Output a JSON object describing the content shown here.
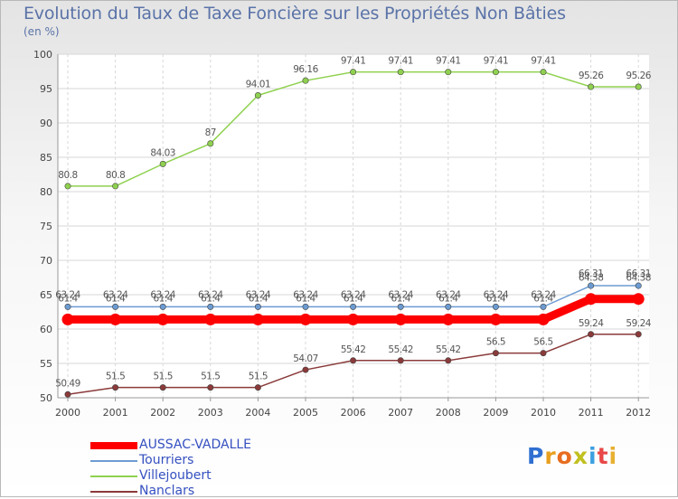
{
  "chart_data": {
    "type": "line",
    "title": "Evolution du Taux de Taxe Foncière sur les Propriétés Non Bâties",
    "ylabel": "(en %)",
    "xlabel": "",
    "ylim": [
      50,
      100
    ],
    "yticks": [
      50,
      55,
      60,
      65,
      70,
      75,
      80,
      85,
      90,
      95,
      100
    ],
    "x": [
      "2000",
      "2001",
      "2002",
      "2003",
      "2004",
      "2005",
      "2006",
      "2007",
      "2008",
      "2009",
      "2010",
      "2011",
      "2012"
    ],
    "series": [
      {
        "name": "AUSSAC-VADALLE",
        "color": "#ff0000",
        "values": [
          61.4,
          61.4,
          61.4,
          61.4,
          61.4,
          61.4,
          61.4,
          61.4,
          61.4,
          61.4,
          61.4,
          64.38,
          64.38
        ],
        "labels": [
          "61.4",
          "61.4",
          "61.4",
          "61.4",
          "61.4",
          "61.4",
          "61.4",
          "61.4",
          "61.4",
          "61.4",
          "61.4",
          "64.38",
          "64.38"
        ]
      },
      {
        "name": "Tourriers",
        "color": "#6c9bd2",
        "values": [
          63.24,
          63.24,
          63.24,
          63.24,
          63.24,
          63.24,
          63.24,
          63.24,
          63.24,
          63.24,
          63.24,
          66.31,
          66.31
        ],
        "labels": [
          "63.24",
          "63.24",
          "63.24",
          "63.24",
          "63.24",
          "63.24",
          "63.24",
          "63.24",
          "63.24",
          "63.24",
          "63.24",
          "66.31",
          "66.31"
        ]
      },
      {
        "name": "Villejoubert",
        "color": "#8fd14f",
        "values": [
          80.8,
          80.8,
          84.03,
          87,
          94.01,
          96.16,
          97.41,
          97.41,
          97.41,
          97.41,
          97.41,
          95.26,
          95.26
        ],
        "labels": [
          "80.8",
          "80.8",
          "84.03",
          "87",
          "94.01",
          "96.16",
          "97.41",
          "97.41",
          "97.41",
          "97.41",
          "97.41",
          "95.26",
          "95.26"
        ]
      },
      {
        "name": "Nanclars",
        "color": "#8b3a3a",
        "values": [
          50.49,
          51.5,
          51.5,
          51.5,
          51.5,
          54.07,
          55.42,
          55.42,
          55.42,
          56.5,
          56.5,
          59.24,
          59.24
        ],
        "labels": [
          "50.49",
          "51.5",
          "51.5",
          "51.5",
          "51.5",
          "54.07",
          "55.42",
          "55.42",
          "55.42",
          "56.5",
          "56.5",
          "59.24",
          "59.24"
        ]
      }
    ]
  },
  "watermark": {
    "letters": [
      "P",
      "r",
      "o",
      "x",
      "i",
      "t",
      "i"
    ],
    "colors": [
      "#2f6fd1",
      "#e8a020",
      "#e86d20",
      "#c0c020",
      "#3ba0e0",
      "#e84848",
      "#e8b030"
    ]
  }
}
